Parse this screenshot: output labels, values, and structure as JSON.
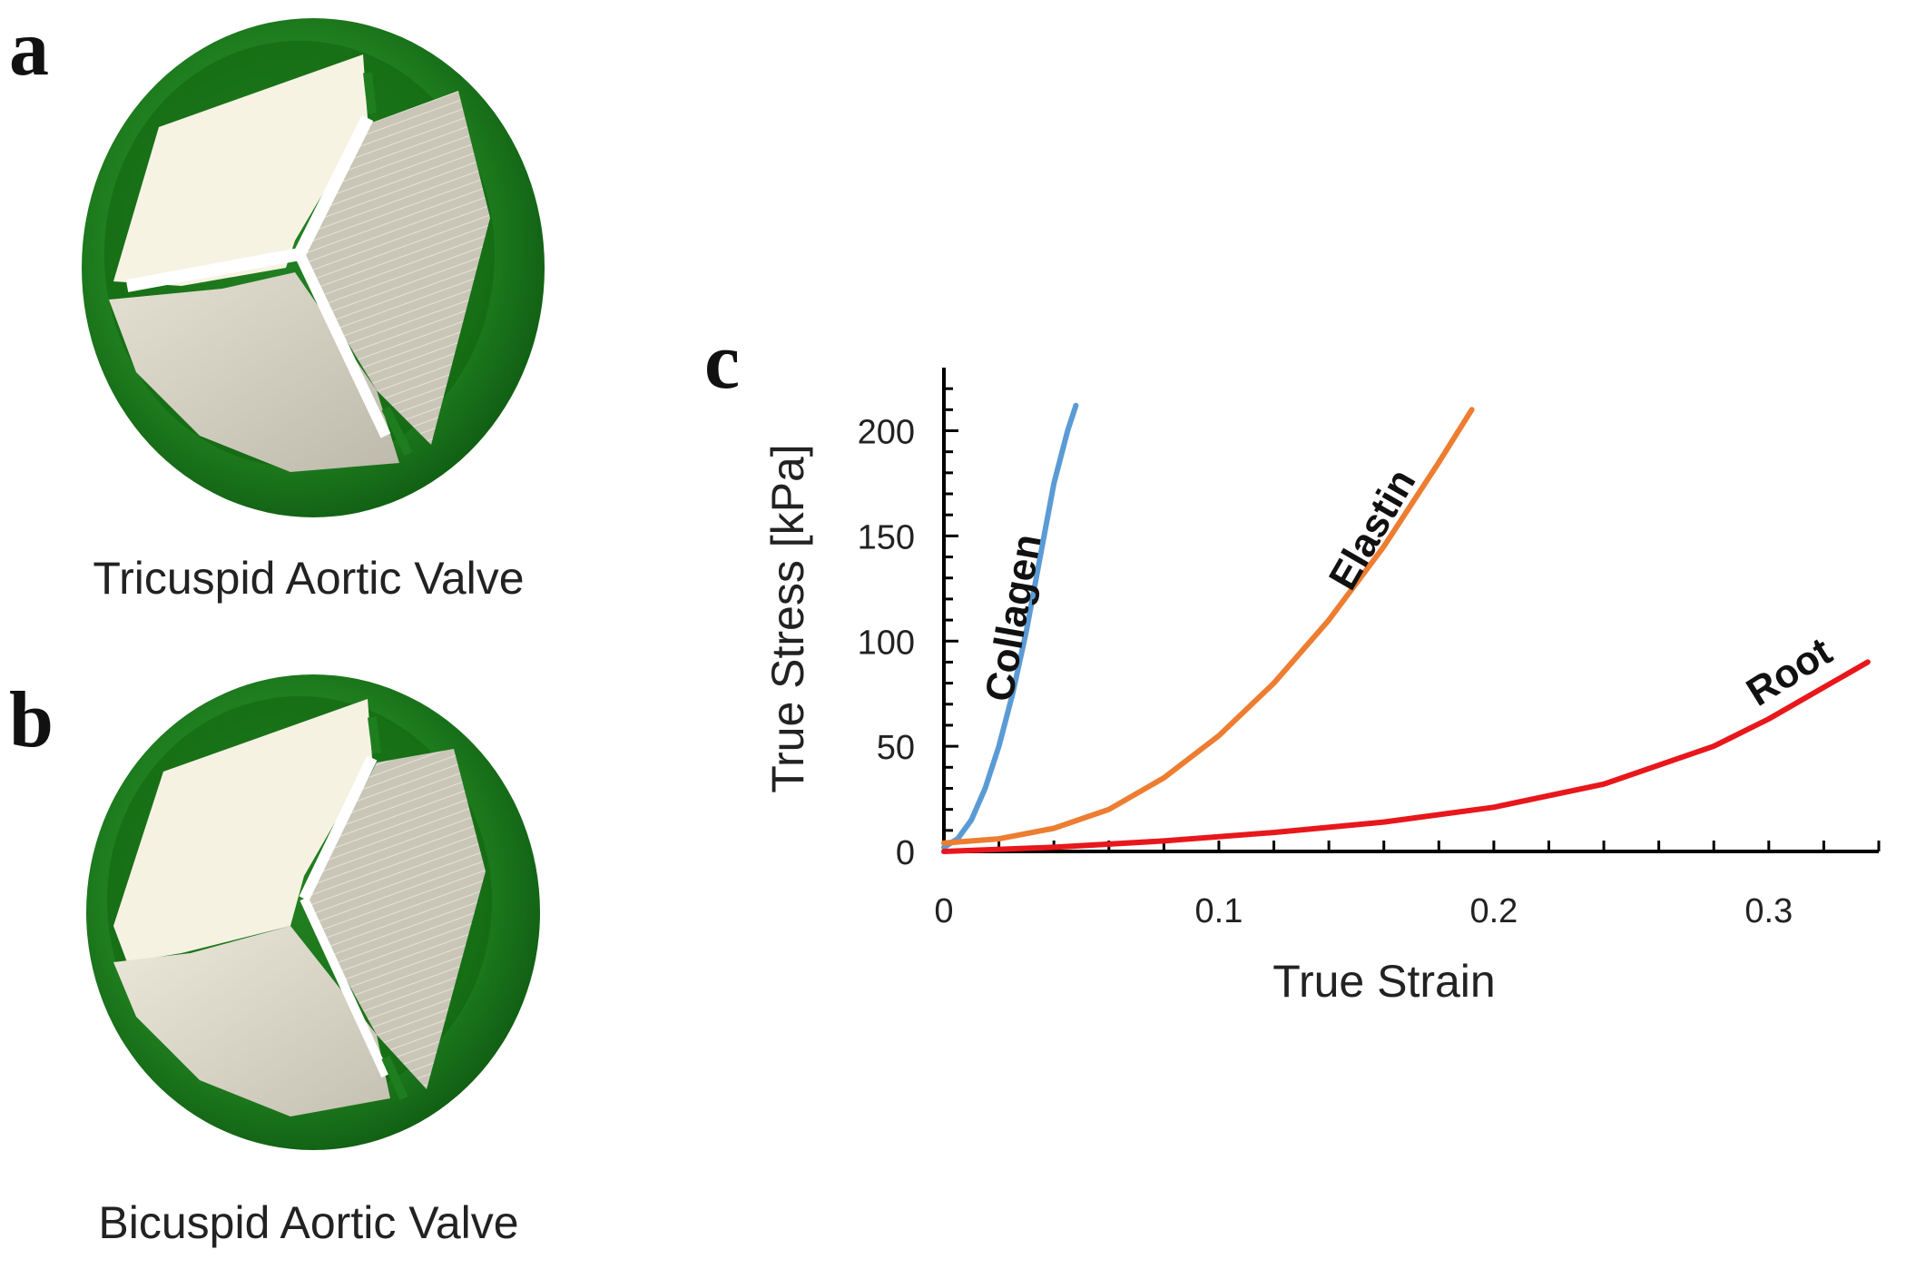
{
  "panels": {
    "a": {
      "letter": "a",
      "caption": "Tricuspid Aortic Valve"
    },
    "b": {
      "letter": "b",
      "caption": "Bicuspid Aortic Valve"
    },
    "c": {
      "letter": "c"
    }
  },
  "colors": {
    "valve_ring": "#1e7d1e",
    "valve_ring_dark": "#0f5a12",
    "leaflet_light": "#f6f2e2",
    "leaflet_shaded": "#cfcbbd"
  },
  "icons": [
    "tricuspid-valve-icon",
    "bicuspid-valve-icon"
  ],
  "chart_data": {
    "type": "line",
    "title": "",
    "xlabel": "True Strain",
    "ylabel": "True Stress [kPa]",
    "xlim": [
      0,
      0.34
    ],
    "ylim": [
      0,
      230
    ],
    "x_ticks": [
      0,
      0.1,
      0.2,
      0.3
    ],
    "x_tick_labels": [
      "0",
      "0.1",
      "0.2",
      "0.3"
    ],
    "y_ticks": [
      0,
      50,
      100,
      150,
      200
    ],
    "y_tick_labels": [
      "0",
      "50",
      "100",
      "150",
      "200"
    ],
    "grid": false,
    "legend": "none",
    "series": [
      {
        "name": "Collagen",
        "color": "#5b9bd5",
        "x": [
          0,
          0.005,
          0.01,
          0.015,
          0.02,
          0.025,
          0.03,
          0.035,
          0.04,
          0.045,
          0.048
        ],
        "y": [
          2,
          6,
          15,
          30,
          50,
          75,
          105,
          140,
          175,
          200,
          212
        ]
      },
      {
        "name": "Elastin",
        "color": "#ed7d31",
        "x": [
          0,
          0.02,
          0.04,
          0.06,
          0.08,
          0.1,
          0.12,
          0.14,
          0.16,
          0.18,
          0.192
        ],
        "y": [
          4,
          6,
          11,
          20,
          35,
          55,
          80,
          110,
          145,
          185,
          210
        ]
      },
      {
        "name": "Root",
        "color": "#e8171b",
        "x": [
          0,
          0.04,
          0.08,
          0.12,
          0.16,
          0.2,
          0.24,
          0.28,
          0.3,
          0.32,
          0.336
        ],
        "y": [
          0,
          2,
          5,
          9,
          14,
          21,
          32,
          50,
          63,
          78,
          90
        ]
      }
    ]
  }
}
